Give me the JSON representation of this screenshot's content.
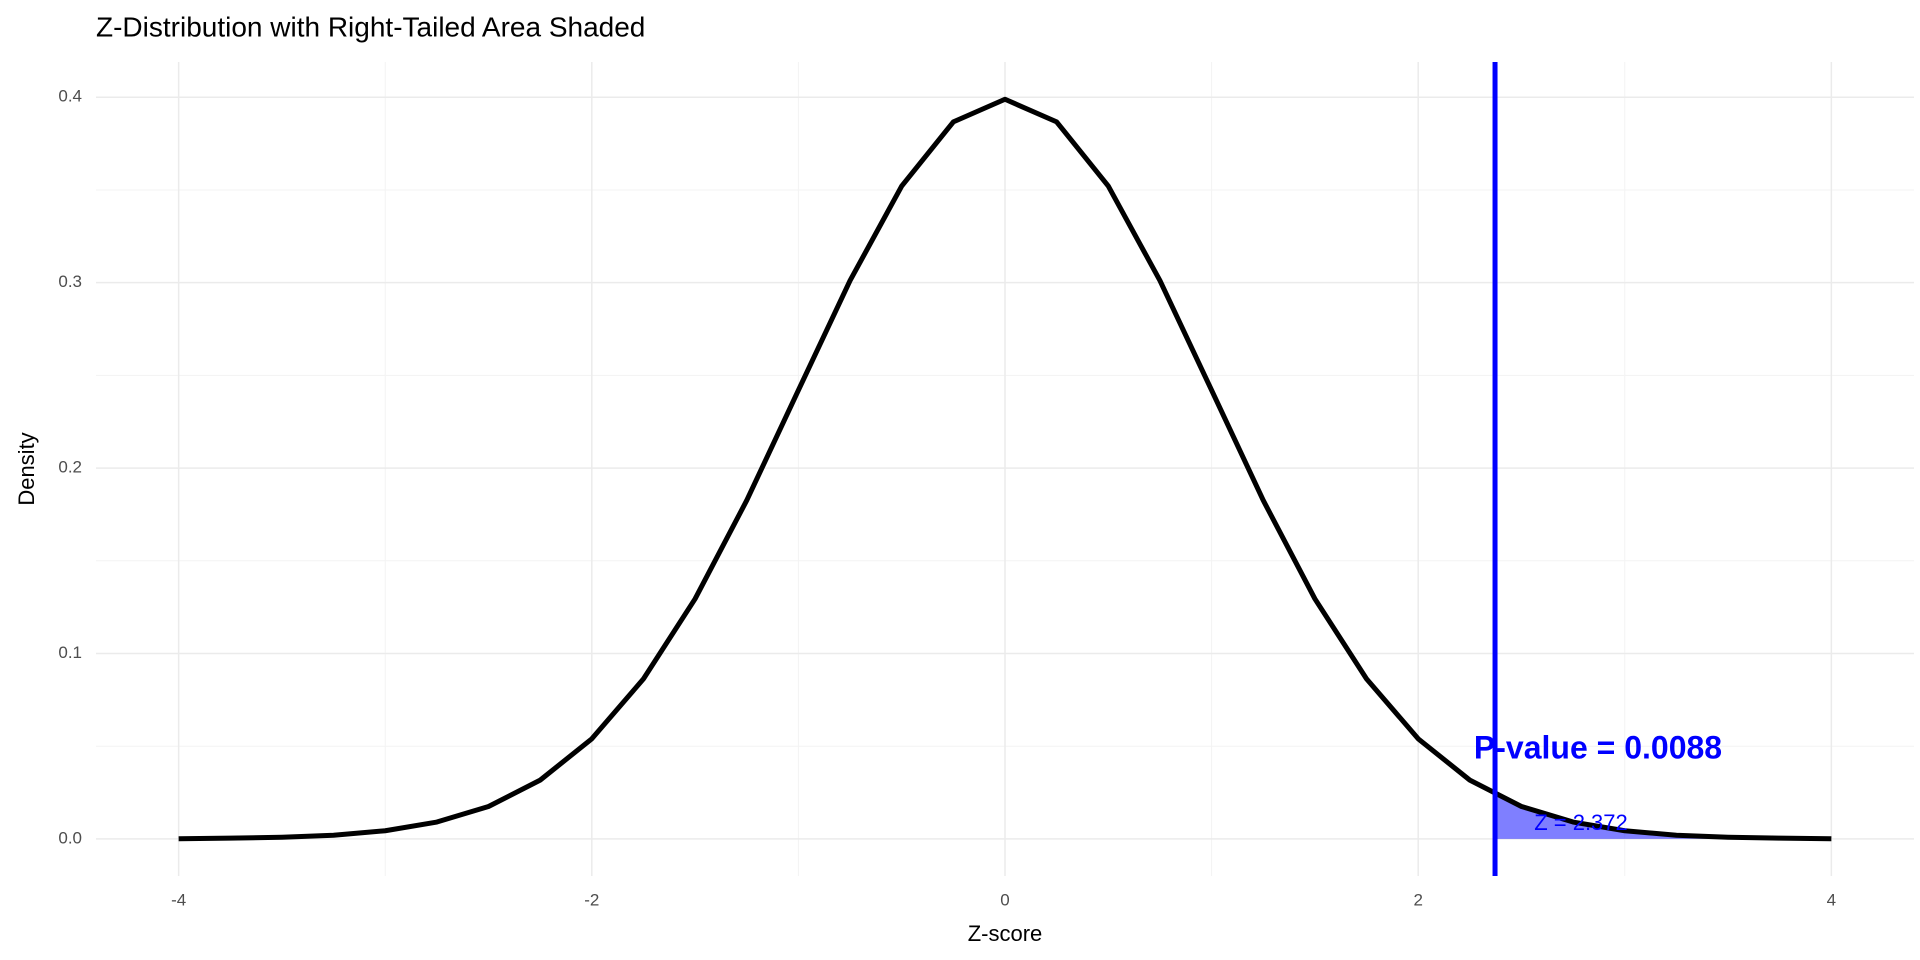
{
  "chart_data": {
    "type": "line",
    "title": "Z-Distribution with Right-Tailed Area Shaded",
    "x_label": "Z-score",
    "y_label": "Density",
    "series": [
      {
        "color": "#000000",
        "x": [
          -4,
          -3.75,
          -3.5,
          -3.25,
          -3,
          -2.75,
          -2.5,
          -2.25,
          -2,
          -1.75,
          -1.5,
          -1.25,
          -1,
          -0.75,
          -0.5,
          -0.25,
          0,
          0.25,
          0.5,
          0.75,
          1,
          1.25,
          1.5,
          1.75,
          2,
          2.25,
          2.5,
          2.75,
          3,
          3.25,
          3.5,
          3.75,
          4
        ],
        "values": [
          0.0001,
          0.0004,
          0.0009,
          0.002,
          0.0044,
          0.0091,
          0.0175,
          0.0317,
          0.054,
          0.0863,
          0.1295,
          0.1826,
          0.242,
          0.3011,
          0.3521,
          0.3867,
          0.3989,
          0.3867,
          0.3521,
          0.3011,
          0.242,
          0.1826,
          0.1295,
          0.0863,
          0.054,
          0.0317,
          0.0175,
          0.0091,
          0.0044,
          0.002,
          0.0009,
          0.0004,
          0.0001
        ]
      }
    ],
    "area": {
      "color": "#0000ff",
      "x": [
        2.372,
        2.5,
        2.75,
        3,
        3.25,
        3.5,
        3.75,
        4
      ],
      "values": [
        0.0239,
        0.0175,
        0.0091,
        0.0044,
        0.002,
        0.0009,
        0.0004,
        0.0001
      ]
    },
    "vline": {
      "x": 2.372,
      "color": "#0000ff"
    },
    "annotations": [
      "P-value = 0.0088",
      "Z = 2.372"
    ],
    "xlim": [
      -4.4,
      4.4
    ],
    "xticks": [
      -4,
      -2,
      0,
      2,
      4
    ],
    "xminor": [
      -3,
      -1,
      1,
      3
    ],
    "ylim": [
      -0.02,
      0.419
    ],
    "yticks": [
      {
        "value": 0,
        "label": "0.0"
      },
      0.1,
      0.2,
      0.3,
      0.4
    ],
    "yminor": [
      0.05,
      0.15,
      0.25,
      0.35
    ],
    "grid": true
  }
}
